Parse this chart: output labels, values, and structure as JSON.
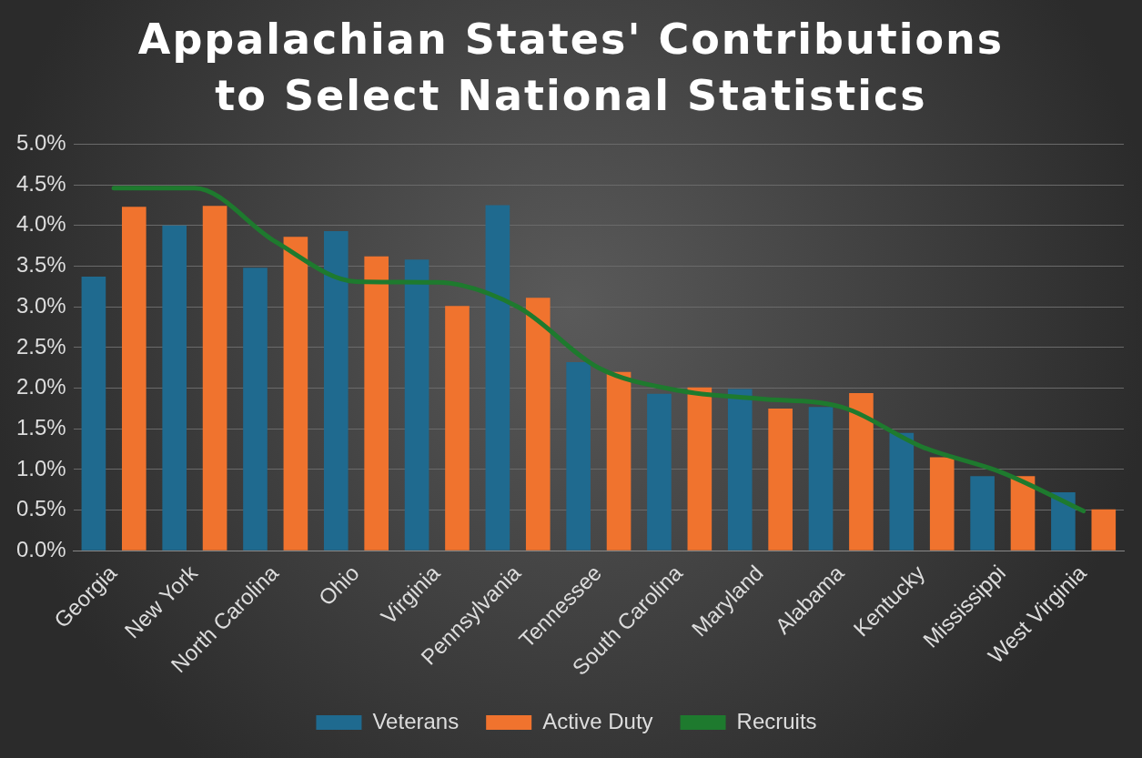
{
  "chart_data": {
    "type": "bar",
    "title": "Appalachian States' Contributions to Select National Statistics",
    "categories": [
      "Georgia",
      "New York",
      "North Carolina",
      "Ohio",
      "Virginia",
      "Pennsylvania",
      "Tennessee",
      "South Carolina",
      "Maryland",
      "Alabama",
      "Kentucky",
      "Mississippi",
      "West Virginia"
    ],
    "series": [
      {
        "name": "Veterans",
        "color": "#1f6a8f",
        "values": [
          3.37,
          4.0,
          3.48,
          3.93,
          3.58,
          4.25,
          2.32,
          1.93,
          1.99,
          1.77,
          1.45,
          0.92,
          0.72
        ]
      },
      {
        "name": "Active Duty",
        "color": "#f0732e",
        "values": [
          4.23,
          4.24,
          3.86,
          3.62,
          3.01,
          3.11,
          2.2,
          2.01,
          1.75,
          1.94,
          1.15,
          0.92,
          0.51
        ]
      },
      {
        "name": "Recruits",
        "type": "line",
        "color": "#1e7a2e",
        "values": [
          4.46,
          4.46,
          3.8,
          3.31,
          3.3,
          3.0,
          2.25,
          1.97,
          1.87,
          1.77,
          1.28,
          0.96,
          0.49
        ]
      }
    ],
    "ylim": [
      0,
      5
    ],
    "yticks": [
      {
        "value": 0,
        "label": "0.0%"
      },
      {
        "value": 0.5,
        "label": "0.5%"
      },
      {
        "value": 1,
        "label": "1.0%"
      },
      {
        "value": 1.5,
        "label": "1.5%"
      },
      {
        "value": 2,
        "label": "2.0%"
      },
      {
        "value": 2.5,
        "label": "2.5%"
      },
      {
        "value": 3,
        "label": "3.0%"
      },
      {
        "value": 3.5,
        "label": "3.5%"
      },
      {
        "value": 4,
        "label": "4.0%"
      },
      {
        "value": 4.5,
        "label": "4.5%"
      },
      {
        "value": 5,
        "label": "5.0%"
      }
    ],
    "grid": "y",
    "legend": "bottom",
    "marker": "none",
    "line_style": "solid"
  }
}
